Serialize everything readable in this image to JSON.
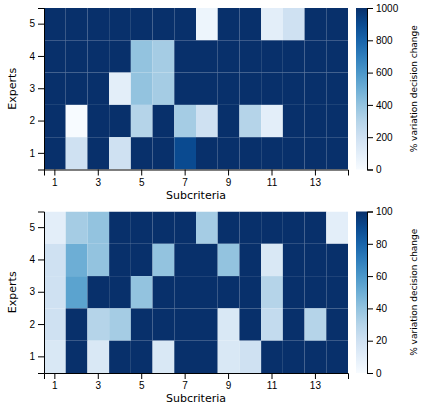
{
  "chart_data": [
    {
      "type": "heatmap",
      "xlabel": "Subcriteria",
      "ylabel": "Experts",
      "categories": [
        "1",
        null,
        "3",
        null,
        "5",
        null,
        "7",
        null,
        "9",
        null,
        "11",
        null,
        "13",
        null
      ],
      "y_categories": [
        "5",
        "4",
        "3",
        "2",
        "1"
      ],
      "values": [
        [
          1000,
          1000,
          1000,
          1000,
          1000,
          1000,
          1000,
          50,
          1000,
          1000,
          100,
          200,
          1000,
          1000
        ],
        [
          1000,
          1000,
          1000,
          1000,
          400,
          350,
          1000,
          1000,
          1000,
          1000,
          1000,
          1000,
          1000,
          1000
        ],
        [
          1000,
          1000,
          1000,
          100,
          400,
          350,
          1000,
          1000,
          1000,
          1000,
          1000,
          1000,
          1000,
          1000
        ],
        [
          1000,
          0,
          1000,
          1000,
          300,
          1000,
          350,
          200,
          1000,
          300,
          100,
          1000,
          1000,
          1000
        ],
        [
          1000,
          200,
          1000,
          200,
          1000,
          1000,
          900,
          1000,
          1000,
          1000,
          1000,
          1000,
          1000,
          1000
        ]
      ],
      "colorbar_label": "% variation decision change",
      "colorbar_range": [
        0,
        1000
      ],
      "colorbar_ticks": [
        0,
        200,
        400,
        600,
        800,
        1000
      ]
    },
    {
      "type": "heatmap",
      "xlabel": "Subcriteria",
      "ylabel": "Experts",
      "categories": [
        "1",
        null,
        "3",
        null,
        "5",
        null,
        "7",
        null,
        "9",
        null,
        "11",
        null,
        "13",
        null
      ],
      "y_categories": [
        "5",
        "4",
        "3",
        "2",
        "1"
      ],
      "values": [
        [
          10,
          35,
          40,
          100,
          100,
          100,
          100,
          35,
          100,
          100,
          100,
          100,
          100,
          10
        ],
        [
          20,
          50,
          40,
          100,
          100,
          40,
          100,
          100,
          40,
          100,
          15,
          100,
          100,
          100
        ],
        [
          20,
          55,
          100,
          100,
          40,
          100,
          100,
          100,
          100,
          100,
          30,
          100,
          100,
          100
        ],
        [
          20,
          100,
          30,
          35,
          100,
          100,
          100,
          100,
          15,
          100,
          25,
          100,
          30,
          100
        ],
        [
          15,
          100,
          15,
          100,
          100,
          15,
          100,
          100,
          15,
          20,
          100,
          100,
          100,
          100
        ]
      ],
      "colorbar_label": "% variation decision change",
      "colorbar_range": [
        0,
        100
      ],
      "colorbar_ticks": [
        0,
        20,
        40,
        60,
        80,
        100
      ]
    }
  ]
}
